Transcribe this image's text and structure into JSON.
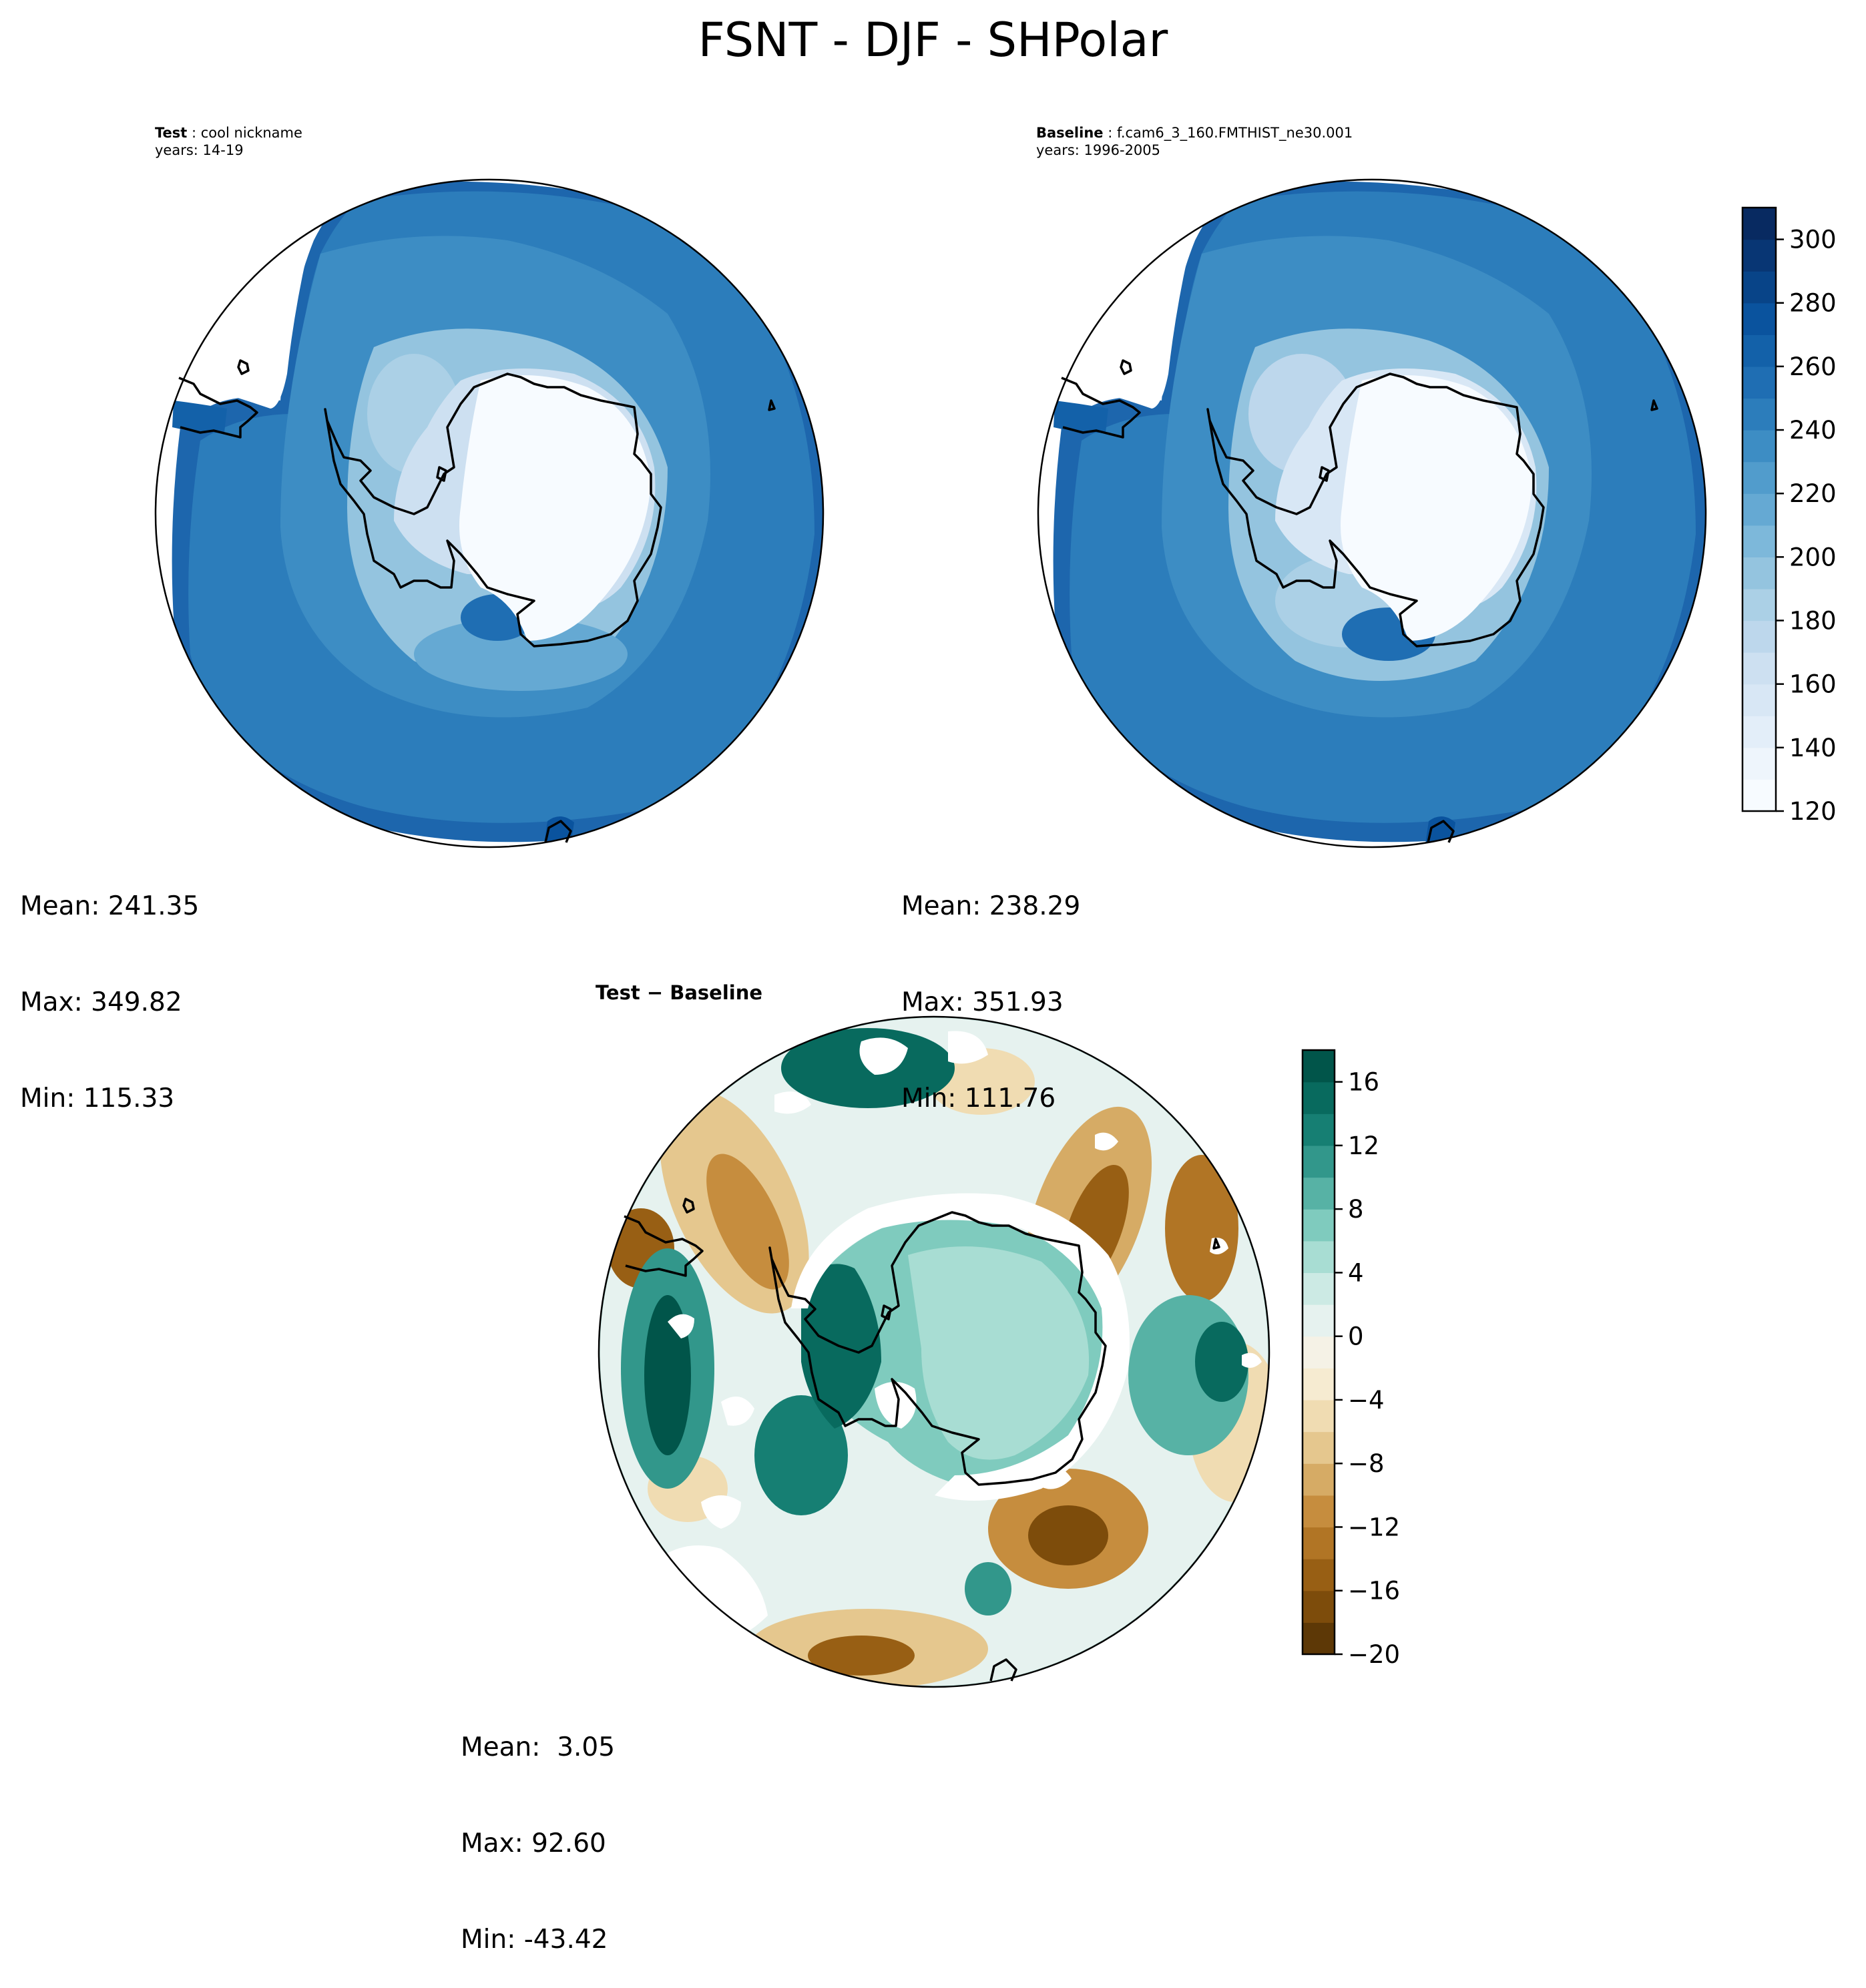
{
  "figure": {
    "title": "FSNT - DJF - SHPolar"
  },
  "panels": {
    "test": {
      "label": "Test",
      "name": "cool nickname",
      "years": "years: 14-19",
      "stats": {
        "mean": "Mean: 241.35",
        "max": "Max: 349.82",
        "min": "Min: 115.33"
      }
    },
    "baseline": {
      "label": "Baseline",
      "name": "f.cam6_3_160.FMTHIST_ne30.001",
      "years": "years: 1996-2005",
      "stats": {
        "mean": "Mean: 238.29",
        "max": "Max: 351.93",
        "min": "Min: 111.76"
      }
    },
    "difference": {
      "title": "Test − Baseline",
      "stats": {
        "mean": "Mean:  3.05",
        "max": "Max: 92.60",
        "min": "Min: -43.42"
      }
    }
  },
  "chart_data": [
    {
      "type": "heatmap",
      "title": "Test",
      "projection": "south-polar stereographic",
      "colormap": "Blues",
      "value_range": [
        120,
        310
      ],
      "mean": 241.35,
      "max": 349.82,
      "min": 115.33
    },
    {
      "type": "heatmap",
      "title": "Baseline",
      "projection": "south-polar stereographic",
      "colormap": "Blues",
      "value_range": [
        120,
        310
      ],
      "mean": 238.29,
      "max": 351.93,
      "min": 111.76
    },
    {
      "type": "heatmap",
      "title": "Test − Baseline",
      "projection": "south-polar stereographic",
      "colormap": "BrBG",
      "value_range": [
        -20,
        18
      ],
      "mean": 3.05,
      "max": 92.6,
      "min": -43.42
    }
  ],
  "colorbars": {
    "main": {
      "ticks": [
        "120",
        "140",
        "160",
        "180",
        "200",
        "220",
        "240",
        "260",
        "280",
        "300"
      ],
      "range": [
        120,
        310
      ],
      "colors": [
        "#f7fbff",
        "#eef5fc",
        "#e3eef9",
        "#d8e7f5",
        "#cde0f1",
        "#bdd7ec",
        "#abd0e6",
        "#94c4df",
        "#7db8da",
        "#65a9d3",
        "#519ccc",
        "#3d8dc4",
        "#2c7dbb",
        "#1f6eb3",
        "#1361a9",
        "#0a539e",
        "#084488",
        "#083674",
        "#082a61"
      ]
    },
    "diff": {
      "ticks": [
        "−20",
        "−16",
        "−12",
        "−8",
        "−4",
        "0",
        "4",
        "8",
        "12",
        "16"
      ],
      "range": [
        -20,
        18
      ],
      "colors": [
        "#5d3806",
        "#7d4c0b",
        "#985f14",
        "#b17525",
        "#c68d3e",
        "#d6ab65",
        "#e5c78e",
        "#f0dcb2",
        "#f6ebd1",
        "#f5f2e6",
        "#e6f2ef",
        "#cceae4",
        "#a8ddd3",
        "#7fcbbe",
        "#57b2a5",
        "#32978b",
        "#167f73",
        "#086a5e",
        "#01554a"
      ]
    }
  }
}
